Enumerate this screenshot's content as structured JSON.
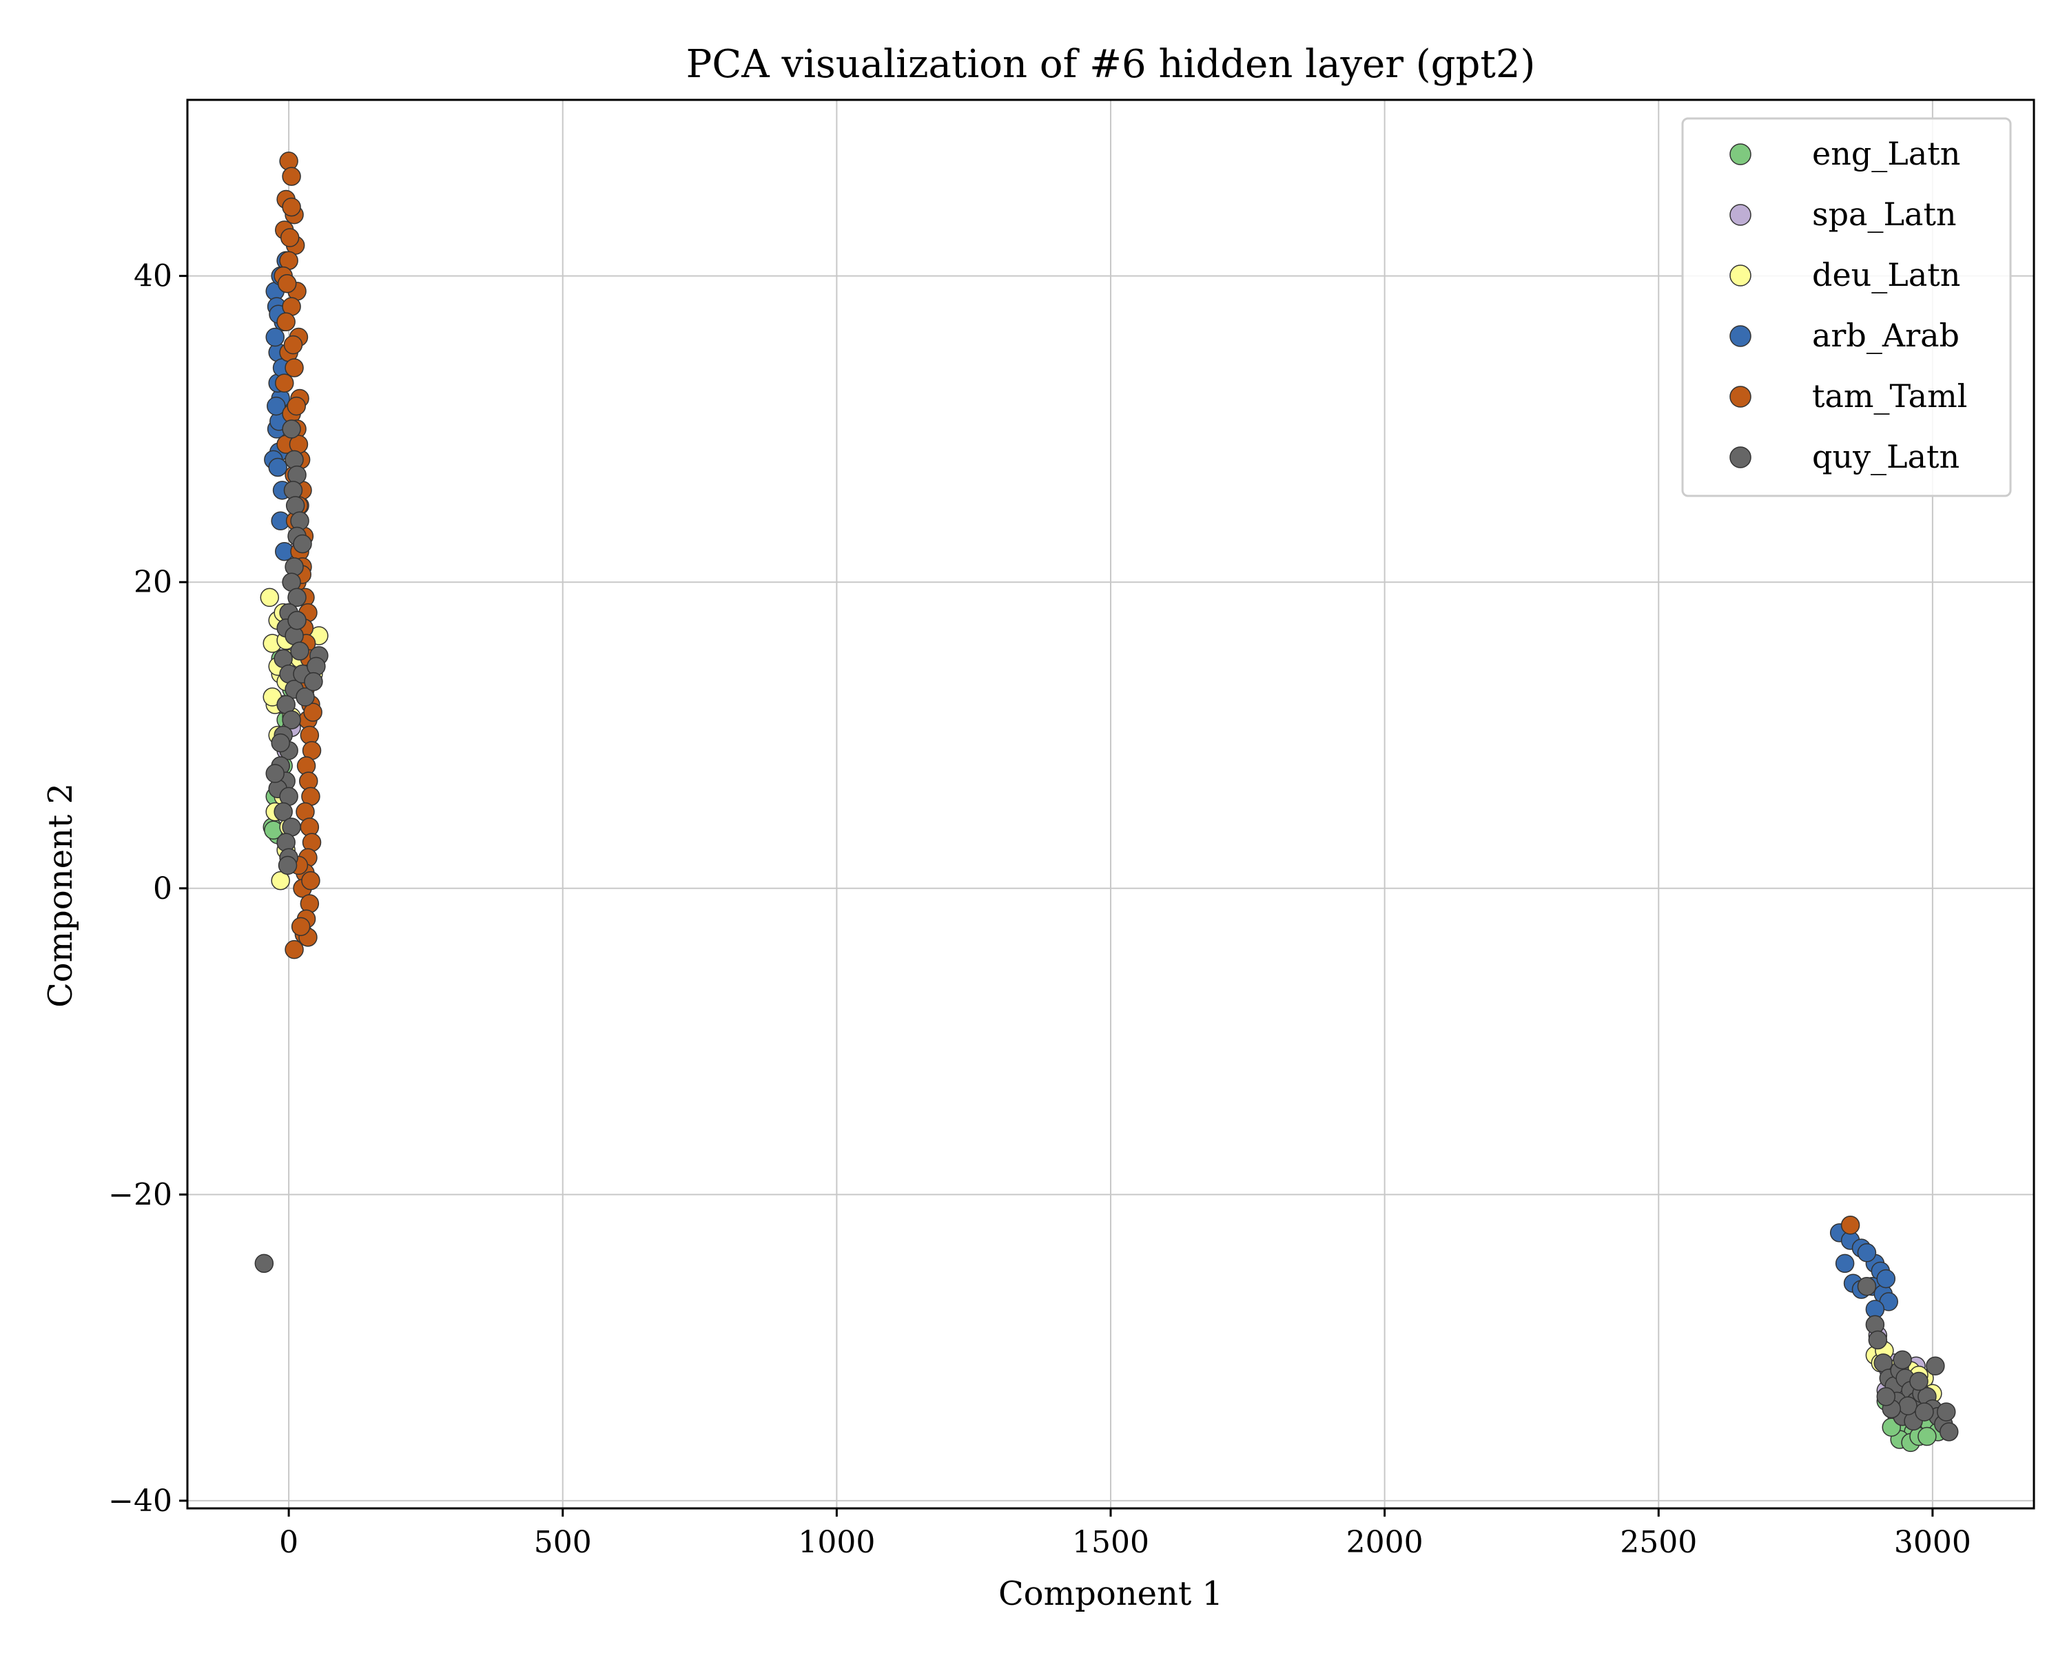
{
  "chart_data": {
    "type": "scatter",
    "title": "PCA visualization of #6 hidden layer (gpt2)",
    "xlabel": "Component 1",
    "ylabel": "Component 2",
    "xlim": [
      -185,
      3185
    ],
    "ylim": [
      -40.5,
      51.5
    ],
    "xticks": [
      0,
      500,
      1000,
      1500,
      2000,
      2500,
      3000
    ],
    "yticks": [
      -40,
      -20,
      0,
      20,
      40
    ],
    "xtick_labels": [
      "0",
      "500",
      "1000",
      "1500",
      "2000",
      "2500",
      "3000"
    ],
    "ytick_labels": [
      "−40",
      "−20",
      "0",
      "20",
      "40"
    ],
    "grid": true,
    "legend_position": "top-right",
    "series": [
      {
        "name": "eng_Latn",
        "color": "#7fc97f",
        "points": [
          [
            -30,
            4.0
          ],
          [
            -20,
            3.5
          ],
          [
            -25,
            6.0
          ],
          [
            -10,
            8.0
          ],
          [
            -5,
            11.0
          ],
          [
            5,
            13.0
          ],
          [
            -15,
            15.0
          ],
          [
            -28,
            3.8
          ],
          [
            2920,
            -33.0
          ],
          [
            2935,
            -34.5
          ],
          [
            2950,
            -35.0
          ],
          [
            2965,
            -35.5
          ],
          [
            2980,
            -34.5
          ],
          [
            2995,
            -35.0
          ],
          [
            3010,
            -35.5
          ],
          [
            2940,
            -36.0
          ],
          [
            2960,
            -36.2
          ],
          [
            2975,
            -35.8
          ],
          [
            2925,
            -35.2
          ],
          [
            3000,
            -34.0
          ],
          [
            2915,
            -33.5
          ],
          [
            2955,
            -34.0
          ],
          [
            2990,
            -35.8
          ]
        ]
      },
      {
        "name": "spa_Latn",
        "color": "#beaed4",
        "points": [
          [
            -10,
            12.0
          ],
          [
            0,
            14.0
          ],
          [
            10,
            16.0
          ],
          [
            -5,
            9.0
          ],
          [
            5,
            10.5
          ],
          [
            15,
            22.0
          ],
          [
            20,
            25.0
          ],
          [
            0,
            18.0
          ],
          [
            2905,
            -30.0
          ],
          [
            2910,
            -30.8
          ],
          [
            2920,
            -31.5
          ],
          [
            2930,
            -31.0
          ],
          [
            2945,
            -32.5
          ],
          [
            2960,
            -32.0
          ],
          [
            2915,
            -32.8
          ],
          [
            2935,
            -33.0
          ],
          [
            2950,
            -31.8
          ],
          [
            2900,
            -29.2
          ],
          [
            2970,
            -31.2
          ]
        ]
      },
      {
        "name": "deu_Latn",
        "color": "#fdfd96",
        "points": [
          [
            -35,
            19.0
          ],
          [
            -30,
            16.0
          ],
          [
            -20,
            17.5
          ],
          [
            -15,
            14.0
          ],
          [
            -25,
            12.0
          ],
          [
            -10,
            18.0
          ],
          [
            0,
            15.0
          ],
          [
            -5,
            13.5
          ],
          [
            10,
            16.5
          ],
          [
            20,
            15.0
          ],
          [
            55,
            16.5
          ],
          [
            45,
            14.0
          ],
          [
            -20,
            10.0
          ],
          [
            -15,
            8.0
          ],
          [
            -10,
            6.0
          ],
          [
            -15,
            0.5
          ],
          [
            -5,
            2.5
          ],
          [
            0,
            4.0
          ],
          [
            -30,
            12.5
          ],
          [
            -25,
            5.0
          ],
          [
            30,
            13.5
          ],
          [
            -20,
            14.5
          ],
          [
            -5,
            16.2
          ],
          [
            5,
            11.2
          ],
          [
            2895,
            -30.5
          ],
          [
            2905,
            -31.0
          ],
          [
            2960,
            -31.5
          ],
          [
            2985,
            -32.0
          ],
          [
            3000,
            -33.0
          ],
          [
            2940,
            -31.2
          ],
          [
            2975,
            -31.8
          ],
          [
            2912,
            -30.2
          ]
        ]
      },
      {
        "name": "arb_Arab",
        "color": "#386cb0",
        "points": [
          [
            -25,
            39.0
          ],
          [
            -20,
            35.0
          ],
          [
            -22,
            30.0
          ],
          [
            -18,
            28.5
          ],
          [
            -15,
            32.0
          ],
          [
            -10,
            37.0
          ],
          [
            -5,
            41.0
          ],
          [
            -20,
            33.0
          ],
          [
            -12,
            26.0
          ],
          [
            -8,
            22.0
          ],
          [
            -25,
            36.0
          ],
          [
            -28,
            28.0
          ],
          [
            -15,
            24.0
          ],
          [
            -18,
            30.5
          ],
          [
            -22,
            38.0
          ],
          [
            -12,
            34.0
          ],
          [
            -20,
            27.5
          ],
          [
            -15,
            40.0
          ],
          [
            -23,
            31.5
          ],
          [
            -19,
            37.5
          ],
          [
            2830,
            -22.5
          ],
          [
            2850,
            -23.0
          ],
          [
            2870,
            -23.5
          ],
          [
            2895,
            -24.5
          ],
          [
            2905,
            -25.0
          ],
          [
            2840,
            -24.5
          ],
          [
            2855,
            -25.8
          ],
          [
            2890,
            -26.0
          ],
          [
            2910,
            -26.5
          ],
          [
            2920,
            -27.0
          ],
          [
            2895,
            -27.5
          ],
          [
            2870,
            -26.2
          ],
          [
            2880,
            -23.8
          ],
          [
            2915,
            -25.5
          ]
        ]
      },
      {
        "name": "tam_Taml",
        "color": "#bf5b17",
        "points": [
          [
            0,
            47.5
          ],
          [
            5,
            46.5
          ],
          [
            -5,
            45.0
          ],
          [
            10,
            44.0
          ],
          [
            -8,
            43.0
          ],
          [
            12,
            42.0
          ],
          [
            0,
            41.0
          ],
          [
            -10,
            40.0
          ],
          [
            15,
            39.0
          ],
          [
            5,
            38.0
          ],
          [
            -5,
            37.0
          ],
          [
            18,
            36.0
          ],
          [
            0,
            35.0
          ],
          [
            10,
            34.0
          ],
          [
            -8,
            33.0
          ],
          [
            20,
            32.0
          ],
          [
            5,
            31.0
          ],
          [
            15,
            30.0
          ],
          [
            -5,
            29.0
          ],
          [
            22,
            28.0
          ],
          [
            10,
            27.0
          ],
          [
            25,
            26.0
          ],
          [
            18,
            25.0
          ],
          [
            12,
            24.0
          ],
          [
            28,
            23.0
          ],
          [
            20,
            22.0
          ],
          [
            25,
            21.0
          ],
          [
            15,
            20.0
          ],
          [
            30,
            19.0
          ],
          [
            35,
            18.0
          ],
          [
            28,
            17.0
          ],
          [
            32,
            16.0
          ],
          [
            38,
            15.0
          ],
          [
            35,
            14.0
          ],
          [
            30,
            13.0
          ],
          [
            40,
            12.0
          ],
          [
            35,
            11.0
          ],
          [
            38,
            10.0
          ],
          [
            42,
            9.0
          ],
          [
            32,
            8.0
          ],
          [
            36,
            7.0
          ],
          [
            40,
            6.0
          ],
          [
            30,
            5.0
          ],
          [
            38,
            4.0
          ],
          [
            42,
            3.0
          ],
          [
            35,
            2.0
          ],
          [
            30,
            1.0
          ],
          [
            25,
            0.0
          ],
          [
            38,
            -1.0
          ],
          [
            32,
            -2.0
          ],
          [
            28,
            -3.0
          ],
          [
            35,
            -3.2
          ],
          [
            10,
            -4.0
          ],
          [
            22,
            -2.5
          ],
          [
            40,
            0.5
          ],
          [
            18,
            1.5
          ],
          [
            5,
            44.5
          ],
          [
            -3,
            39.5
          ],
          [
            8,
            35.5
          ],
          [
            14,
            31.5
          ],
          [
            2,
            42.5
          ],
          [
            18,
            29.0
          ],
          [
            24,
            20.5
          ],
          [
            44,
            11.5
          ],
          [
            2850,
            -22.0
          ]
        ]
      },
      {
        "name": "quy_Latn",
        "color": "#666666",
        "points": [
          [
            -45,
            -24.5
          ],
          [
            5,
            30.0
          ],
          [
            10,
            28.0
          ],
          [
            15,
            27.0
          ],
          [
            8,
            26.0
          ],
          [
            12,
            25.0
          ],
          [
            20,
            24.0
          ],
          [
            15,
            23.0
          ],
          [
            25,
            22.5
          ],
          [
            10,
            21.0
          ],
          [
            5,
            20.0
          ],
          [
            15,
            19.0
          ],
          [
            0,
            18.0
          ],
          [
            -5,
            17.0
          ],
          [
            10,
            16.5
          ],
          [
            20,
            15.5
          ],
          [
            -10,
            15.0
          ],
          [
            0,
            14.0
          ],
          [
            10,
            13.0
          ],
          [
            -5,
            12.0
          ],
          [
            5,
            11.0
          ],
          [
            -10,
            10.0
          ],
          [
            0,
            9.0
          ],
          [
            -15,
            8.0
          ],
          [
            -5,
            7.0
          ],
          [
            -20,
            6.5
          ],
          [
            0,
            6.0
          ],
          [
            -10,
            5.0
          ],
          [
            5,
            4.0
          ],
          [
            -5,
            3.0
          ],
          [
            0,
            2.0
          ],
          [
            -2,
            1.5
          ],
          [
            25,
            14.0
          ],
          [
            30,
            12.5
          ],
          [
            55,
            15.2
          ],
          [
            50,
            14.5
          ],
          [
            45,
            13.5
          ],
          [
            -25,
            7.5
          ],
          [
            -15,
            9.5
          ],
          [
            15,
            17.5
          ],
          [
            2880,
            -26.0
          ],
          [
            2895,
            -28.5
          ],
          [
            2900,
            -29.5
          ],
          [
            2910,
            -31.0
          ],
          [
            2920,
            -32.0
          ],
          [
            2930,
            -32.5
          ],
          [
            2940,
            -31.5
          ],
          [
            2950,
            -32.0
          ],
          [
            2960,
            -32.8
          ],
          [
            2970,
            -33.5
          ],
          [
            2980,
            -33.0
          ],
          [
            2990,
            -33.2
          ],
          [
            3000,
            -34.0
          ],
          [
            3010,
            -34.5
          ],
          [
            3020,
            -35.0
          ],
          [
            3030,
            -35.5
          ],
          [
            3025,
            -34.2
          ],
          [
            2945,
            -34.5
          ],
          [
            2935,
            -33.5
          ],
          [
            2965,
            -34.8
          ],
          [
            2975,
            -32.2
          ],
          [
            2955,
            -33.8
          ],
          [
            2985,
            -34.2
          ],
          [
            3005,
            -31.2
          ],
          [
            2925,
            -34.0
          ],
          [
            2915,
            -33.2
          ],
          [
            2945,
            -30.8
          ]
        ]
      }
    ]
  }
}
